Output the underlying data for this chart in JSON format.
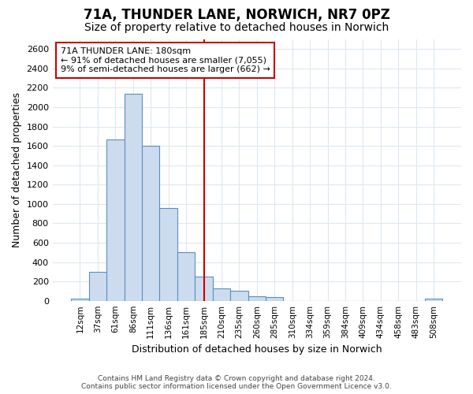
{
  "title_line1": "71A, THUNDER LANE, NORWICH, NR7 0PZ",
  "title_line2": "Size of property relative to detached houses in Norwich",
  "xlabel": "Distribution of detached houses by size in Norwich",
  "ylabel": "Number of detached properties",
  "footer_line1": "Contains HM Land Registry data © Crown copyright and database right 2024.",
  "footer_line2": "Contains public sector information licensed under the Open Government Licence v3.0.",
  "annotation_line1": "71A THUNDER LANE: 180sqm",
  "annotation_line2": "← 91% of detached houses are smaller (7,055)",
  "annotation_line3": "9% of semi-detached houses are larger (662) →",
  "bar_color": "#ccdcee",
  "bar_edge_color": "#5a8fc0",
  "vline_color": "#cc0000",
  "vline_x_index": 7,
  "categories": [
    "12sqm",
    "37sqm",
    "61sqm",
    "86sqm",
    "111sqm",
    "136sqm",
    "161sqm",
    "185sqm",
    "210sqm",
    "235sqm",
    "260sqm",
    "285sqm",
    "310sqm",
    "334sqm",
    "359sqm",
    "384sqm",
    "409sqm",
    "434sqm",
    "458sqm",
    "483sqm",
    "508sqm"
  ],
  "values": [
    25,
    300,
    1670,
    2140,
    1600,
    960,
    505,
    250,
    125,
    100,
    50,
    35,
    0,
    0,
    0,
    0,
    0,
    0,
    0,
    0,
    25
  ],
  "ylim": [
    0,
    2700
  ],
  "yticks": [
    0,
    200,
    400,
    600,
    800,
    1000,
    1200,
    1400,
    1600,
    1800,
    2000,
    2200,
    2400,
    2600
  ],
  "background_color": "#ffffff",
  "grid_color": "#dde8f0",
  "annotation_box_color": "white",
  "annotation_box_edge": "#cc0000",
  "title_fontsize": 12,
  "subtitle_fontsize": 10,
  "xlabel_fontsize": 9,
  "ylabel_fontsize": 9
}
